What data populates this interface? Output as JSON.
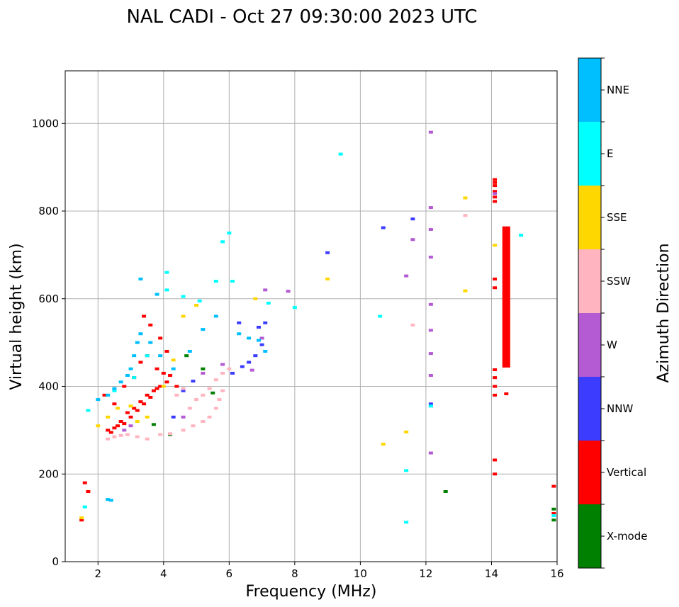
{
  "chart_data": {
    "type": "scatter",
    "title": "NAL CADI - Oct 27 09:30:00 2023 UTC",
    "xlabel": "Frequency (MHz)",
    "ylabel": "Virtual height (km)",
    "xlim": [
      1,
      16
    ],
    "ylim": [
      0,
      1120
    ],
    "xticks": [
      2,
      4,
      6,
      8,
      10,
      12,
      14,
      16
    ],
    "yticks": [
      0,
      200,
      400,
      600,
      800,
      1000
    ],
    "grid": true,
    "colorbar": {
      "label": "Azimuth Direction",
      "categories": [
        {
          "name": "X-mode",
          "color": "#008000"
        },
        {
          "name": "Vertical",
          "color": "#ff0000"
        },
        {
          "name": "NNW",
          "color": "#3c3cff"
        },
        {
          "name": "W",
          "color": "#b45ad2"
        },
        {
          "name": "SSW",
          "color": "#ffb4c0"
        },
        {
          "name": "SSE",
          "color": "#ffd700"
        },
        {
          "name": "E",
          "color": "#00ffff"
        },
        {
          "name": "NNE",
          "color": "#00bfff"
        }
      ]
    },
    "series": [
      {
        "name": "X-mode",
        "points": [
          [
            3.7,
            313
          ],
          [
            4.2,
            290
          ],
          [
            4.7,
            470
          ],
          [
            5.2,
            440
          ],
          [
            5.5,
            385
          ],
          [
            12.6,
            160
          ],
          [
            14.45,
            718
          ],
          [
            15.9,
            95
          ],
          [
            15.9,
            120
          ]
        ]
      },
      {
        "name": "Vertical",
        "points": [
          [
            2.3,
            300
          ],
          [
            2.5,
            305
          ],
          [
            2.7,
            320
          ],
          [
            2.9,
            340
          ],
          [
            3.1,
            350
          ],
          [
            3.3,
            365
          ],
          [
            3.5,
            380
          ],
          [
            3.7,
            390
          ],
          [
            3.9,
            400
          ],
          [
            4.1,
            410
          ],
          [
            2.4,
            295
          ],
          [
            2.6,
            310
          ],
          [
            2.8,
            315
          ],
          [
            3.0,
            330
          ],
          [
            3.2,
            345
          ],
          [
            3.4,
            360
          ],
          [
            3.6,
            375
          ],
          [
            3.8,
            395
          ],
          [
            2.2,
            380
          ],
          [
            2.5,
            360
          ],
          [
            2.8,
            400
          ],
          [
            3.1,
            420
          ],
          [
            3.3,
            455
          ],
          [
            3.5,
            470
          ],
          [
            3.8,
            440
          ],
          [
            4.0,
            430
          ],
          [
            4.2,
            425
          ],
          [
            4.4,
            400
          ],
          [
            3.4,
            560
          ],
          [
            3.6,
            540
          ],
          [
            3.9,
            510
          ],
          [
            4.1,
            480
          ],
          [
            1.5,
            95
          ],
          [
            1.7,
            160
          ],
          [
            1.6,
            180
          ],
          [
            14.1,
            200
          ],
          [
            14.1,
            232
          ],
          [
            14.1,
            380
          ],
          [
            14.1,
            400
          ],
          [
            14.1,
            420
          ],
          [
            14.1,
            438
          ],
          [
            14.1,
            625
          ],
          [
            14.1,
            645
          ],
          [
            14.1,
            822
          ],
          [
            14.1,
            832
          ],
          [
            14.1,
            845
          ],
          [
            14.1,
            858
          ],
          [
            14.1,
            865
          ],
          [
            14.1,
            872
          ],
          [
            14.45,
            680
          ],
          [
            14.45,
            670
          ],
          [
            14.45,
            690
          ],
          [
            14.45,
            383
          ],
          [
            15.9,
            172
          ],
          [
            15.9,
            110
          ]
        ]
      },
      {
        "name": "NNW",
        "points": [
          [
            4.9,
            412
          ],
          [
            6.1,
            430
          ],
          [
            6.4,
            445
          ],
          [
            6.6,
            455
          ],
          [
            6.8,
            470
          ],
          [
            7.0,
            495
          ],
          [
            6.9,
            535
          ],
          [
            6.3,
            545
          ],
          [
            7.1,
            545
          ],
          [
            9.0,
            705
          ],
          [
            10.7,
            762
          ],
          [
            11.6,
            782
          ],
          [
            12.15,
            360
          ],
          [
            4.3,
            330
          ],
          [
            4.6,
            390
          ]
        ]
      },
      {
        "name": "W",
        "points": [
          [
            2.8,
            300
          ],
          [
            3.0,
            310
          ],
          [
            4.6,
            330
          ],
          [
            5.2,
            430
          ],
          [
            5.8,
            450
          ],
          [
            6.7,
            437
          ],
          [
            7.0,
            510
          ],
          [
            7.1,
            620
          ],
          [
            11.4,
            652
          ],
          [
            11.6,
            735
          ],
          [
            12.15,
            248
          ],
          [
            12.15,
            425
          ],
          [
            12.15,
            475
          ],
          [
            12.15,
            528
          ],
          [
            12.15,
            587
          ],
          [
            12.15,
            695
          ],
          [
            12.15,
            758
          ],
          [
            12.15,
            808
          ],
          [
            12.15,
            980
          ],
          [
            14.1,
            840
          ],
          [
            7.8,
            617
          ]
        ]
      },
      {
        "name": "SSW",
        "points": [
          [
            2.3,
            280
          ],
          [
            2.5,
            285
          ],
          [
            2.7,
            288
          ],
          [
            2.9,
            290
          ],
          [
            3.2,
            285
          ],
          [
            3.5,
            280
          ],
          [
            3.9,
            290
          ],
          [
            4.2,
            292
          ],
          [
            4.6,
            300
          ],
          [
            4.9,
            310
          ],
          [
            5.2,
            320
          ],
          [
            5.4,
            330
          ],
          [
            5.6,
            350
          ],
          [
            5.7,
            370
          ],
          [
            5.8,
            390
          ],
          [
            4.8,
            350
          ],
          [
            5.0,
            370
          ],
          [
            5.2,
            380
          ],
          [
            5.4,
            395
          ],
          [
            5.6,
            415
          ],
          [
            5.8,
            430
          ],
          [
            6.0,
            440
          ],
          [
            4.4,
            380
          ],
          [
            4.6,
            395
          ],
          [
            11.6,
            540
          ],
          [
            13.2,
            790
          ],
          [
            14.45,
            600
          ]
        ]
      },
      {
        "name": "SSE",
        "points": [
          [
            1.5,
            100
          ],
          [
            2.0,
            310
          ],
          [
            2.3,
            330
          ],
          [
            2.6,
            350
          ],
          [
            3.0,
            355
          ],
          [
            3.2,
            320
          ],
          [
            3.5,
            330
          ],
          [
            4.0,
            400
          ],
          [
            4.3,
            460
          ],
          [
            4.6,
            560
          ],
          [
            5.0,
            585
          ],
          [
            6.8,
            600
          ],
          [
            9.0,
            645
          ],
          [
            10.7,
            268
          ],
          [
            11.4,
            296
          ],
          [
            13.2,
            618
          ],
          [
            13.2,
            830
          ],
          [
            14.1,
            722
          ]
        ]
      },
      {
        "name": "E",
        "points": [
          [
            1.6,
            125
          ],
          [
            1.7,
            345
          ],
          [
            2.5,
            390
          ],
          [
            3.1,
            420
          ],
          [
            3.5,
            470
          ],
          [
            4.1,
            660
          ],
          [
            4.1,
            620
          ],
          [
            4.6,
            605
          ],
          [
            5.1,
            595
          ],
          [
            5.6,
            640
          ],
          [
            5.8,
            730
          ],
          [
            6.0,
            750
          ],
          [
            6.1,
            640
          ],
          [
            7.2,
            590
          ],
          [
            8.0,
            580
          ],
          [
            9.4,
            930
          ],
          [
            10.6,
            560
          ],
          [
            11.4,
            208
          ],
          [
            11.4,
            90
          ],
          [
            12.15,
            355
          ],
          [
            14.9,
            745
          ],
          [
            15.9,
            105
          ]
        ]
      },
      {
        "name": "NNE",
        "points": [
          [
            2.0,
            370
          ],
          [
            2.3,
            380
          ],
          [
            2.5,
            395
          ],
          [
            2.7,
            410
          ],
          [
            2.9,
            425
          ],
          [
            3.0,
            440
          ],
          [
            3.1,
            470
          ],
          [
            3.2,
            500
          ],
          [
            3.3,
            520
          ],
          [
            3.6,
            500
          ],
          [
            3.9,
            470
          ],
          [
            4.3,
            440
          ],
          [
            4.8,
            480
          ],
          [
            5.2,
            530
          ],
          [
            5.6,
            560
          ],
          [
            6.3,
            520
          ],
          [
            6.6,
            510
          ],
          [
            6.9,
            505
          ],
          [
            7.1,
            480
          ],
          [
            2.4,
            140
          ],
          [
            2.3,
            142
          ],
          [
            3.3,
            645
          ],
          [
            3.8,
            610
          ]
        ]
      }
    ]
  }
}
